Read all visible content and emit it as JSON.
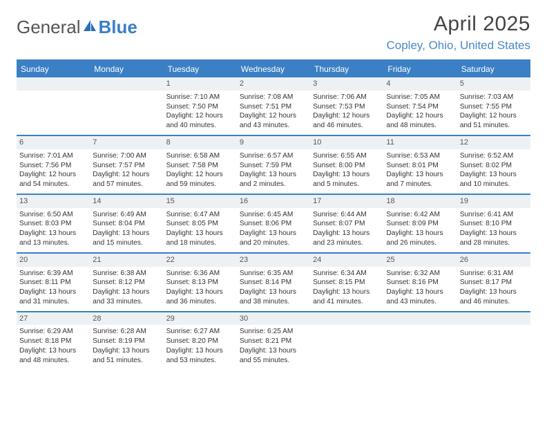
{
  "colors": {
    "accent": "#3b7fc4",
    "band": "#eef1f4",
    "text": "#333333",
    "title": "#444444"
  },
  "logo": {
    "textA": "General",
    "textB": "Blue"
  },
  "title": "April 2025",
  "location": "Copley, Ohio, United States",
  "weekdays": [
    "Sunday",
    "Monday",
    "Tuesday",
    "Wednesday",
    "Thursday",
    "Friday",
    "Saturday"
  ],
  "weeks": [
    [
      null,
      null,
      {
        "n": "1",
        "sr": "Sunrise: 7:10 AM",
        "ss": "Sunset: 7:50 PM",
        "d1": "Daylight: 12 hours",
        "d2": "and 40 minutes."
      },
      {
        "n": "2",
        "sr": "Sunrise: 7:08 AM",
        "ss": "Sunset: 7:51 PM",
        "d1": "Daylight: 12 hours",
        "d2": "and 43 minutes."
      },
      {
        "n": "3",
        "sr": "Sunrise: 7:06 AM",
        "ss": "Sunset: 7:53 PM",
        "d1": "Daylight: 12 hours",
        "d2": "and 46 minutes."
      },
      {
        "n": "4",
        "sr": "Sunrise: 7:05 AM",
        "ss": "Sunset: 7:54 PM",
        "d1": "Daylight: 12 hours",
        "d2": "and 48 minutes."
      },
      {
        "n": "5",
        "sr": "Sunrise: 7:03 AM",
        "ss": "Sunset: 7:55 PM",
        "d1": "Daylight: 12 hours",
        "d2": "and 51 minutes."
      }
    ],
    [
      {
        "n": "6",
        "sr": "Sunrise: 7:01 AM",
        "ss": "Sunset: 7:56 PM",
        "d1": "Daylight: 12 hours",
        "d2": "and 54 minutes."
      },
      {
        "n": "7",
        "sr": "Sunrise: 7:00 AM",
        "ss": "Sunset: 7:57 PM",
        "d1": "Daylight: 12 hours",
        "d2": "and 57 minutes."
      },
      {
        "n": "8",
        "sr": "Sunrise: 6:58 AM",
        "ss": "Sunset: 7:58 PM",
        "d1": "Daylight: 12 hours",
        "d2": "and 59 minutes."
      },
      {
        "n": "9",
        "sr": "Sunrise: 6:57 AM",
        "ss": "Sunset: 7:59 PM",
        "d1": "Daylight: 13 hours",
        "d2": "and 2 minutes."
      },
      {
        "n": "10",
        "sr": "Sunrise: 6:55 AM",
        "ss": "Sunset: 8:00 PM",
        "d1": "Daylight: 13 hours",
        "d2": "and 5 minutes."
      },
      {
        "n": "11",
        "sr": "Sunrise: 6:53 AM",
        "ss": "Sunset: 8:01 PM",
        "d1": "Daylight: 13 hours",
        "d2": "and 7 minutes."
      },
      {
        "n": "12",
        "sr": "Sunrise: 6:52 AM",
        "ss": "Sunset: 8:02 PM",
        "d1": "Daylight: 13 hours",
        "d2": "and 10 minutes."
      }
    ],
    [
      {
        "n": "13",
        "sr": "Sunrise: 6:50 AM",
        "ss": "Sunset: 8:03 PM",
        "d1": "Daylight: 13 hours",
        "d2": "and 13 minutes."
      },
      {
        "n": "14",
        "sr": "Sunrise: 6:49 AM",
        "ss": "Sunset: 8:04 PM",
        "d1": "Daylight: 13 hours",
        "d2": "and 15 minutes."
      },
      {
        "n": "15",
        "sr": "Sunrise: 6:47 AM",
        "ss": "Sunset: 8:05 PM",
        "d1": "Daylight: 13 hours",
        "d2": "and 18 minutes."
      },
      {
        "n": "16",
        "sr": "Sunrise: 6:45 AM",
        "ss": "Sunset: 8:06 PM",
        "d1": "Daylight: 13 hours",
        "d2": "and 20 minutes."
      },
      {
        "n": "17",
        "sr": "Sunrise: 6:44 AM",
        "ss": "Sunset: 8:07 PM",
        "d1": "Daylight: 13 hours",
        "d2": "and 23 minutes."
      },
      {
        "n": "18",
        "sr": "Sunrise: 6:42 AM",
        "ss": "Sunset: 8:09 PM",
        "d1": "Daylight: 13 hours",
        "d2": "and 26 minutes."
      },
      {
        "n": "19",
        "sr": "Sunrise: 6:41 AM",
        "ss": "Sunset: 8:10 PM",
        "d1": "Daylight: 13 hours",
        "d2": "and 28 minutes."
      }
    ],
    [
      {
        "n": "20",
        "sr": "Sunrise: 6:39 AM",
        "ss": "Sunset: 8:11 PM",
        "d1": "Daylight: 13 hours",
        "d2": "and 31 minutes."
      },
      {
        "n": "21",
        "sr": "Sunrise: 6:38 AM",
        "ss": "Sunset: 8:12 PM",
        "d1": "Daylight: 13 hours",
        "d2": "and 33 minutes."
      },
      {
        "n": "22",
        "sr": "Sunrise: 6:36 AM",
        "ss": "Sunset: 8:13 PM",
        "d1": "Daylight: 13 hours",
        "d2": "and 36 minutes."
      },
      {
        "n": "23",
        "sr": "Sunrise: 6:35 AM",
        "ss": "Sunset: 8:14 PM",
        "d1": "Daylight: 13 hours",
        "d2": "and 38 minutes."
      },
      {
        "n": "24",
        "sr": "Sunrise: 6:34 AM",
        "ss": "Sunset: 8:15 PM",
        "d1": "Daylight: 13 hours",
        "d2": "and 41 minutes."
      },
      {
        "n": "25",
        "sr": "Sunrise: 6:32 AM",
        "ss": "Sunset: 8:16 PM",
        "d1": "Daylight: 13 hours",
        "d2": "and 43 minutes."
      },
      {
        "n": "26",
        "sr": "Sunrise: 6:31 AM",
        "ss": "Sunset: 8:17 PM",
        "d1": "Daylight: 13 hours",
        "d2": "and 46 minutes."
      }
    ],
    [
      {
        "n": "27",
        "sr": "Sunrise: 6:29 AM",
        "ss": "Sunset: 8:18 PM",
        "d1": "Daylight: 13 hours",
        "d2": "and 48 minutes."
      },
      {
        "n": "28",
        "sr": "Sunrise: 6:28 AM",
        "ss": "Sunset: 8:19 PM",
        "d1": "Daylight: 13 hours",
        "d2": "and 51 minutes."
      },
      {
        "n": "29",
        "sr": "Sunrise: 6:27 AM",
        "ss": "Sunset: 8:20 PM",
        "d1": "Daylight: 13 hours",
        "d2": "and 53 minutes."
      },
      {
        "n": "30",
        "sr": "Sunrise: 6:25 AM",
        "ss": "Sunset: 8:21 PM",
        "d1": "Daylight: 13 hours",
        "d2": "and 55 minutes."
      },
      null,
      null,
      null
    ]
  ]
}
